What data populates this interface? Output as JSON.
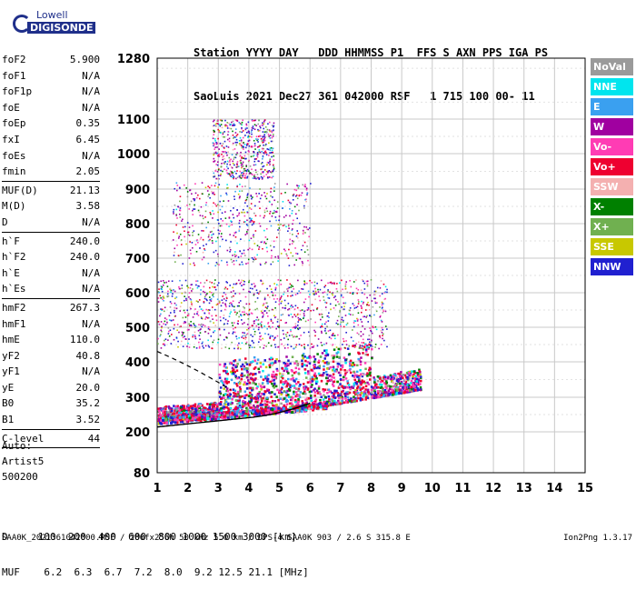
{
  "logo": {
    "line1": "Lowell",
    "line2": "DIGISONDE"
  },
  "header": {
    "line1": "Station YYYY DAY   DDD HHMMSS P1  FFS S AXN PPS IGA PS",
    "line2": "SaoLuis 2021 Dec27 361 042000 RSF   1 715 100 00- 11"
  },
  "params": [
    {
      "name": "foF2",
      "value": "5.900"
    },
    {
      "name": "foF1",
      "value": "N/A"
    },
    {
      "name": "foF1p",
      "value": "N/A"
    },
    {
      "name": "foE",
      "value": "N/A"
    },
    {
      "name": "foEp",
      "value": "0.35"
    },
    {
      "name": "fxI",
      "value": "6.45"
    },
    {
      "name": "foEs",
      "value": "N/A"
    },
    {
      "name": "fmin",
      "value": "2.05"
    },
    {
      "sep": true
    },
    {
      "name": "MUF(D)",
      "value": "21.13"
    },
    {
      "name": "M(D)",
      "value": "3.58"
    },
    {
      "name": "D",
      "value": "N/A"
    },
    {
      "sep": true
    },
    {
      "name": "h`F",
      "value": "240.0"
    },
    {
      "name": "h`F2",
      "value": "240.0"
    },
    {
      "name": "h`E",
      "value": "N/A"
    },
    {
      "name": "h`Es",
      "value": "N/A"
    },
    {
      "sep": true
    },
    {
      "name": "hmF2",
      "value": "267.3"
    },
    {
      "name": "hmF1",
      "value": "N/A"
    },
    {
      "name": "hmE",
      "value": "110.0"
    },
    {
      "name": "yF2",
      "value": "40.8"
    },
    {
      "name": "yF1",
      "value": "N/A"
    },
    {
      "name": "yE",
      "value": "20.0"
    },
    {
      "name": "B0",
      "value": "35.2"
    },
    {
      "name": "B1",
      "value": "3.52"
    },
    {
      "sep": true
    },
    {
      "name": "C-level",
      "value": "44"
    },
    {
      "sep": true
    }
  ],
  "auto": {
    "line1": "Auto:",
    "line2": "Artist5",
    "line3": "500200"
  },
  "bottom_table": {
    "d_row": "D     100  200  400  600  800 1000 1500 3000 [km]",
    "muf_row": "MUF    6.2  6.3  6.7  7.2  8.0  9.2 12.5 21.1 [MHz]"
  },
  "footer": {
    "left": "SAA0K_2021361042000.RSF / 280fx256h 50 kHz 5.0 km / DPS-4 SAA0K 903 / 2.6 S 315.8 E",
    "right": "Ion2Png 1.3.17"
  },
  "legend": [
    {
      "label": "NoVal",
      "color": "#9a9a9a"
    },
    {
      "label": "NNE",
      "color": "#00e5ee"
    },
    {
      "label": "E",
      "color": "#3aa0f0"
    },
    {
      "label": "W",
      "color": "#a000a0"
    },
    {
      "label": "Vo-",
      "color": "#ff3cb4"
    },
    {
      "label": "Vo+",
      "color": "#ee0030"
    },
    {
      "label": "SSW",
      "color": "#f4b0b0"
    },
    {
      "label": "X-",
      "color": "#008000"
    },
    {
      "label": "X+",
      "color": "#70b050"
    },
    {
      "label": "SSE",
      "color": "#c8c800"
    },
    {
      "label": "NNW",
      "color": "#2020d0"
    }
  ],
  "chart_data": {
    "type": "scatter",
    "x_ticks": [
      "1",
      "2",
      "3",
      "4",
      "5",
      "6",
      "7",
      "8",
      "9",
      "10",
      "11",
      "12",
      "13",
      "14",
      "15"
    ],
    "y_ticks": [
      "80",
      "200",
      "300",
      "400",
      "500",
      "600",
      "700",
      "800",
      "900",
      "1000",
      "1100",
      "1280"
    ],
    "xlim": [
      1,
      15
    ],
    "grid": true,
    "trace_clusters": [
      {
        "name": "F-trace",
        "x_range": [
          1.0,
          9.6
        ],
        "h_range": [
          230,
          460
        ],
        "density": "high"
      },
      {
        "name": "2nd-hop",
        "x_range": [
          1.0,
          8.5
        ],
        "h_range": [
          440,
          640
        ],
        "density": "medium"
      },
      {
        "name": "3rd-hop",
        "x_range": [
          1.5,
          6.0
        ],
        "h_range": [
          680,
          920
        ],
        "density": "low"
      },
      {
        "name": "4th-hop",
        "x_range": [
          2.8,
          4.8
        ],
        "h_range": [
          930,
          1100
        ],
        "density": "low"
      }
    ],
    "profile_line": {
      "style": "solid",
      "color": "#000000"
    },
    "model_line": {
      "style": "dashed",
      "color": "#000000"
    }
  }
}
